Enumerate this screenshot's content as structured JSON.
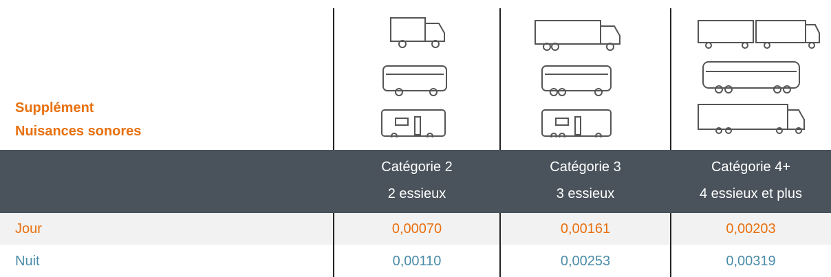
{
  "header": {
    "title_lines": [
      "Supplément",
      "Nuisances sonores"
    ]
  },
  "table": {
    "columns": [
      {
        "category": "Catégorie 2",
        "axles": "2 essieux"
      },
      {
        "category": "Catégorie 3",
        "axles": "3 essieux"
      },
      {
        "category": "Catégorie 4+",
        "axles": "4 essieux et plus"
      }
    ],
    "rows": [
      {
        "label": "Jour",
        "values": [
          "0,00070",
          "0,00161",
          "0,00203"
        ]
      },
      {
        "label": "Nuit",
        "values": [
          "0,00110",
          "0,00253",
          "0,00319"
        ]
      }
    ]
  }
}
